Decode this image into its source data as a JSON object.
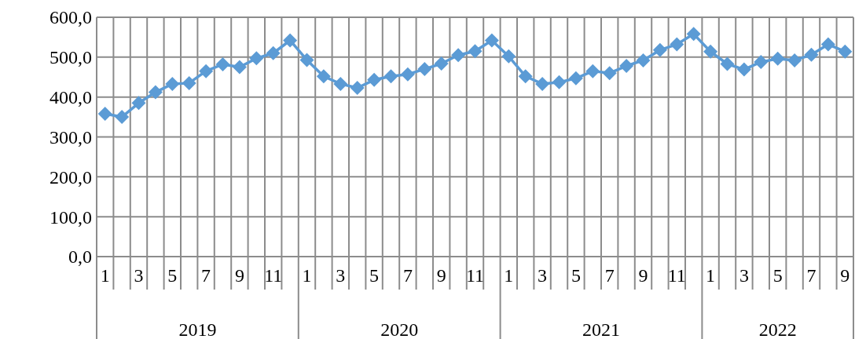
{
  "chart_data": {
    "type": "line",
    "categories": [
      "1",
      null,
      "3",
      null,
      "5",
      null,
      "7",
      null,
      "9",
      null,
      "11",
      null,
      "1",
      null,
      "3",
      null,
      "5",
      null,
      "7",
      null,
      "9",
      null,
      "11",
      null,
      "1",
      null,
      "3",
      null,
      "5",
      null,
      "7",
      null,
      "9",
      null,
      "11",
      null,
      "1",
      null,
      "3",
      null,
      "5",
      null,
      "7",
      null,
      "9"
    ],
    "series": [
      {
        "color": "#5b9bd5",
        "values": [
          358,
          350,
          385,
          412,
          433,
          435,
          465,
          482,
          475,
          497,
          510,
          542,
          493,
          452,
          433,
          423,
          443,
          452,
          457,
          470,
          484,
          505,
          515,
          542,
          502,
          452,
          433,
          437,
          447,
          465,
          460,
          478,
          492,
          518,
          532,
          558,
          514,
          483,
          469,
          488,
          496,
          492,
          506,
          532,
          514
        ]
      }
    ],
    "ylim": [
      0,
      600
    ],
    "yticks": [
      {
        "value": 0,
        "label": "0,0"
      },
      {
        "value": 100,
        "label": "100,0"
      },
      {
        "value": 200,
        "label": "200,0"
      },
      {
        "value": 300,
        "label": "300,0"
      },
      {
        "value": 400,
        "label": "400,0"
      },
      {
        "value": 500,
        "label": "500,0"
      },
      {
        "value": 600,
        "label": "600,0"
      }
    ],
    "annotations": [
      "2019",
      "2020",
      "2021",
      "2022"
    ],
    "grid": true,
    "marker": "diamond",
    "line_style": "solid"
  }
}
